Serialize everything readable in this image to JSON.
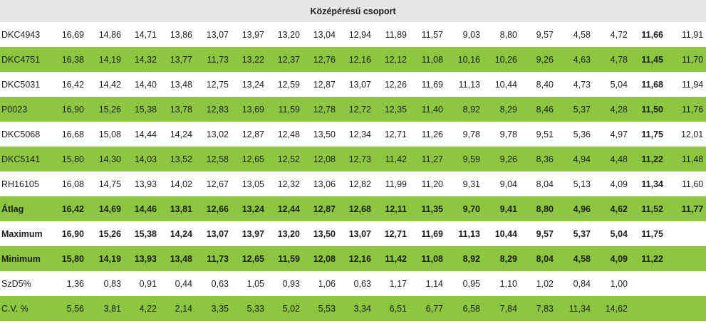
{
  "header": {
    "title": "Középérésű csoport"
  },
  "rows": [
    {
      "label": "DKC4943",
      "values": [
        "16,69",
        "14,86",
        "14,71",
        "13,86",
        "13,07",
        "13,97",
        "13,20",
        "13,04",
        "12,94",
        "11,89",
        "11,57",
        "9,03",
        "8,80",
        "9,57",
        "4,58",
        "4,72",
        "11,66",
        "11,91"
      ]
    },
    {
      "label": "DKC4751",
      "values": [
        "16,38",
        "14,19",
        "14,32",
        "13,77",
        "11,73",
        "13,22",
        "12,37",
        "12,76",
        "12,16",
        "12,12",
        "11,08",
        "10,16",
        "10,26",
        "9,26",
        "4,63",
        "4,78",
        "11,45",
        "11,70"
      ]
    },
    {
      "label": "DKC5031",
      "values": [
        "16,42",
        "14,42",
        "14,40",
        "13,48",
        "12,75",
        "13,24",
        "12,59",
        "12,87",
        "13,07",
        "12,26",
        "11,69",
        "11,13",
        "10,44",
        "8,40",
        "4,73",
        "5,04",
        "11,68",
        "11,94"
      ]
    },
    {
      "label": "P0023",
      "values": [
        "16,90",
        "15,26",
        "15,38",
        "13,78",
        "12,83",
        "13,69",
        "11,59",
        "12,78",
        "12,72",
        "12,35",
        "11,40",
        "8,92",
        "8,29",
        "8,46",
        "5,37",
        "4,28",
        "11,50",
        "11,76"
      ]
    },
    {
      "label": "DKC5068",
      "values": [
        "16,68",
        "15,08",
        "14,44",
        "14,24",
        "13,02",
        "12,87",
        "12,48",
        "13,50",
        "12,34",
        "12,71",
        "11,26",
        "9,78",
        "9,78",
        "9,51",
        "5,36",
        "4,97",
        "11,75",
        "12,01"
      ]
    },
    {
      "label": "DKC5141",
      "values": [
        "15,80",
        "14,30",
        "14,03",
        "13,52",
        "12,58",
        "12,65",
        "12,52",
        "12,08",
        "12,73",
        "11,42",
        "11,27",
        "9,59",
        "9,26",
        "8,36",
        "4,94",
        "4,48",
        "11,22",
        "11,48"
      ]
    },
    {
      "label": "RH16105",
      "values": [
        "16,08",
        "14,75",
        "13,93",
        "14,02",
        "12,67",
        "13,05",
        "12,32",
        "13,06",
        "12,82",
        "11,99",
        "11,20",
        "9,31",
        "9,04",
        "8,04",
        "5,13",
        "4,09",
        "11,34",
        "11,60"
      ]
    },
    {
      "label": "Átlag",
      "values": [
        "16,42",
        "14,69",
        "14,46",
        "13,81",
        "12,66",
        "13,24",
        "12,44",
        "12,87",
        "12,68",
        "12,11",
        "11,35",
        "9,70",
        "9,41",
        "8,80",
        "4,96",
        "4,62",
        "11,52",
        "11,77"
      ]
    },
    {
      "label": "Maximum",
      "values": [
        "16,90",
        "15,26",
        "15,38",
        "14,24",
        "13,07",
        "13,97",
        "13,20",
        "13,50",
        "13,07",
        "12,71",
        "11,69",
        "11,13",
        "10,44",
        "9,57",
        "5,37",
        "5,04",
        "11,75",
        ""
      ]
    },
    {
      "label": "Minimum",
      "values": [
        "15,80",
        "14,19",
        "13,93",
        "13,48",
        "11,73",
        "12,65",
        "11,59",
        "12,08",
        "12,16",
        "11,42",
        "11,08",
        "8,92",
        "8,29",
        "8,04",
        "4,58",
        "4,09",
        "11,22",
        ""
      ]
    },
    {
      "label": "SzD5%",
      "values": [
        "1,36",
        "0,83",
        "0,91",
        "0,44",
        "0,63",
        "1,05",
        "0,93",
        "1,06",
        "0,63",
        "1,17",
        "1,14",
        "0,95",
        "1,10",
        "1,02",
        "0,84",
        "1,00",
        "",
        ""
      ]
    },
    {
      "label": "C.V. %",
      "values": [
        "5,56",
        "3,81",
        "4,22",
        "2,14",
        "3,35",
        "5,33",
        "5,02",
        "5,53",
        "3,34",
        "6,51",
        "6,77",
        "6,58",
        "7,84",
        "7,83",
        "11,34",
        "14,62",
        "",
        ""
      ]
    }
  ]
}
